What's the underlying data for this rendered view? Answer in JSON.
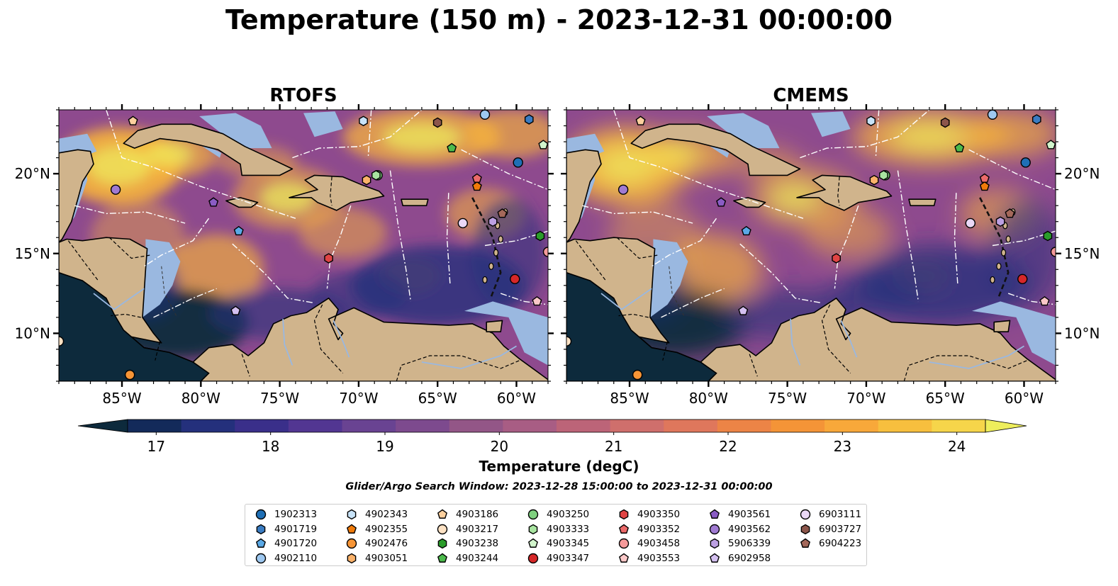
{
  "title": "Temperature (150 m) - 2023-12-31 00:00:00",
  "panels": [
    {
      "id": "left",
      "title": "RTOFS"
    },
    {
      "id": "right",
      "title": "CMEMS"
    }
  ],
  "map": {
    "lon_range": [
      -89,
      -58
    ],
    "lat_range": [
      7,
      24
    ],
    "lon_ticks": [
      "85°W",
      "80°W",
      "75°W",
      "70°W",
      "65°W",
      "60°W"
    ],
    "lat_ticks": [
      "20°N",
      "15°N",
      "10°N"
    ],
    "land_color": "#d0b48c",
    "shelf_color": "#9ab8e0"
  },
  "colorbar": {
    "label": "Temperature (degC)",
    "min": 16.75,
    "max": 24.5,
    "ticks": [
      "17",
      "18",
      "19",
      "20",
      "21",
      "22",
      "23",
      "24"
    ],
    "colors": [
      "#0d2a3c",
      "#132a5a",
      "#24307c",
      "#3a2f8a",
      "#523692",
      "#694392",
      "#7d4a8e",
      "#935687",
      "#a85d84",
      "#bc6478",
      "#cf6f6c",
      "#df775c",
      "#ec8446",
      "#f49437",
      "#f8a83a",
      "#f7bf3e",
      "#f6d54a",
      "#eeee5c"
    ]
  },
  "search_window": "Glider/Argo Search Window: 2023-12-28 15:00:00 to 2023-12-31 00:00:00",
  "legend": [
    {
      "id": "1902313",
      "color": "#1f6fb5",
      "marker": "circle"
    },
    {
      "id": "4901719",
      "color": "#3a7cc2",
      "marker": "hexagon"
    },
    {
      "id": "4901720",
      "color": "#5aa9e6",
      "marker": "pentagon"
    },
    {
      "id": "4902110",
      "color": "#9ec8f0",
      "marker": "circle"
    },
    {
      "id": "4902343",
      "color": "#c8e3f8",
      "marker": "hexagon"
    },
    {
      "id": "4902355",
      "color": "#f07b0a",
      "marker": "pentagon"
    },
    {
      "id": "4902476",
      "color": "#f79536",
      "marker": "circle"
    },
    {
      "id": "4903051",
      "color": "#fbb26a",
      "marker": "hexagon"
    },
    {
      "id": "4903186",
      "color": "#fdd09e",
      "marker": "pentagon"
    },
    {
      "id": "4903217",
      "color": "#fde2c4",
      "marker": "circle"
    },
    {
      "id": "4903238",
      "color": "#2a9c2a",
      "marker": "hexagon"
    },
    {
      "id": "4903244",
      "color": "#4cba4c",
      "marker": "pentagon"
    },
    {
      "id": "4903250",
      "color": "#7fd07f",
      "marker": "circle"
    },
    {
      "id": "4903333",
      "color": "#a8e4a0",
      "marker": "hexagon"
    },
    {
      "id": "4903345",
      "color": "#d2f5cc",
      "marker": "pentagon"
    },
    {
      "id": "4903347",
      "color": "#d62728",
      "marker": "circle"
    },
    {
      "id": "4903350",
      "color": "#e04444",
      "marker": "hexagon"
    },
    {
      "id": "4903352",
      "color": "#ec6a6a",
      "marker": "pentagon"
    },
    {
      "id": "4903458",
      "color": "#f59a9a",
      "marker": "circle"
    },
    {
      "id": "4903553",
      "color": "#fbc8c8",
      "marker": "pentagon"
    },
    {
      "id": "4903561",
      "color": "#8a5cc4",
      "marker": "pentagon"
    },
    {
      "id": "4903562",
      "color": "#a07ad2",
      "marker": "circle"
    },
    {
      "id": "5906339",
      "color": "#bca0e2",
      "marker": "hexagon"
    },
    {
      "id": "6902958",
      "color": "#d4c0f0",
      "marker": "pentagon"
    },
    {
      "id": "6903111",
      "color": "#ead8f6",
      "marker": "circle"
    },
    {
      "id": "6903727",
      "color": "#8c564b",
      "marker": "hexagon"
    },
    {
      "id": "6904223",
      "color": "#a4685a",
      "marker": "pentagon"
    }
  ],
  "floats": [
    {
      "id": "1902313",
      "lon": -59.9,
      "lat": 20.7
    },
    {
      "id": "4901719",
      "lon": -59.2,
      "lat": 23.4
    },
    {
      "id": "4901720",
      "lon": -77.6,
      "lat": 16.4
    },
    {
      "id": "4902110",
      "lon": -62.0,
      "lat": 23.7
    },
    {
      "id": "4902343",
      "lon": -69.7,
      "lat": 23.3
    },
    {
      "id": "4902355",
      "lon": -62.5,
      "lat": 19.2
    },
    {
      "id": "4902476",
      "lon": -84.5,
      "lat": 7.4
    },
    {
      "id": "4903051",
      "lon": -69.5,
      "lat": 19.6
    },
    {
      "id": "4903186",
      "lon": -84.3,
      "lat": 23.3
    },
    {
      "id": "4903217",
      "lon": -89.0,
      "lat": 9.5
    },
    {
      "id": "4903238",
      "lon": -58.5,
      "lat": 16.1
    },
    {
      "id": "4903244",
      "lon": -64.1,
      "lat": 21.6
    },
    {
      "id": "4903250",
      "lon": -68.8,
      "lat": 19.9
    },
    {
      "id": "4903333",
      "lon": -68.9,
      "lat": 19.9
    },
    {
      "id": "4903345",
      "lon": -58.3,
      "lat": 21.8
    },
    {
      "id": "4903347",
      "lon": -60.1,
      "lat": 13.4
    },
    {
      "id": "4903350",
      "lon": -71.9,
      "lat": 14.7
    },
    {
      "id": "4903352",
      "lon": -62.5,
      "lat": 19.7
    },
    {
      "id": "4903458",
      "lon": -58.0,
      "lat": 15.1
    },
    {
      "id": "4903553",
      "lon": -58.7,
      "lat": 12.0
    },
    {
      "id": "4903561",
      "lon": -79.2,
      "lat": 18.2
    },
    {
      "id": "4903562",
      "lon": -85.4,
      "lat": 19.0
    },
    {
      "id": "5906339",
      "lon": -61.5,
      "lat": 17.0
    },
    {
      "id": "6902958",
      "lon": -77.8,
      "lat": 11.4
    },
    {
      "id": "6903111",
      "lon": -63.4,
      "lat": 16.9
    },
    {
      "id": "6903727",
      "lon": -65.0,
      "lat": 23.2
    },
    {
      "id": "6904223",
      "lon": -60.9,
      "lat": 17.5
    }
  ]
}
